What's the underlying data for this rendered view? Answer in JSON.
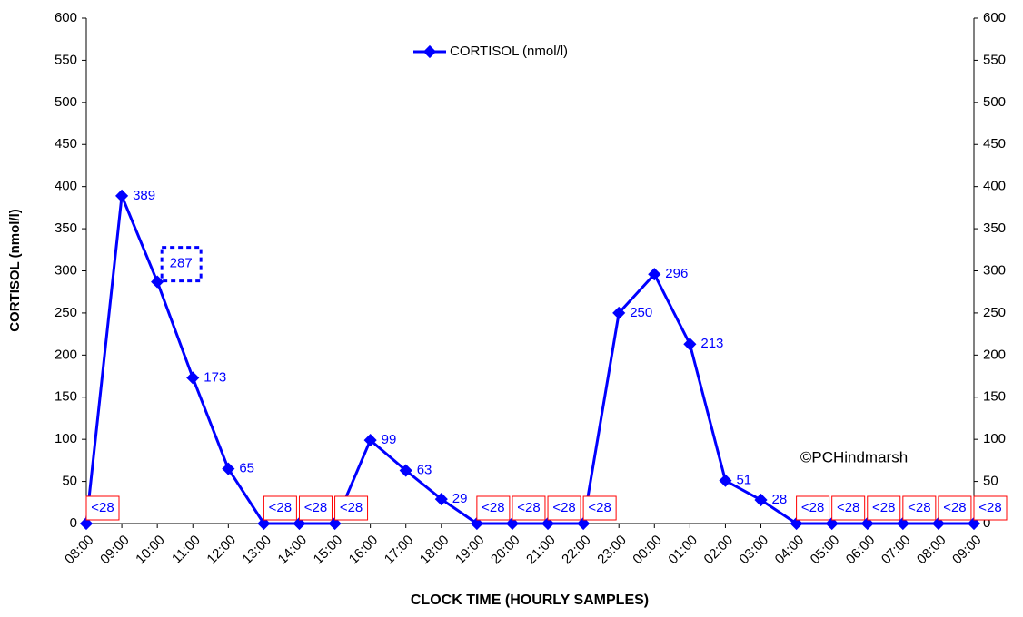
{
  "chart_data": {
    "type": "line",
    "x_label": "CLOCK TIME (HOURLY SAMPLES)",
    "y_label": "CORTISOL (nmol/l)",
    "annotation": "©PCHindmarsh",
    "categories": [
      "08:00",
      "09:00",
      "10:00",
      "11:00",
      "12:00",
      "13:00",
      "14:00",
      "15:00",
      "16:00",
      "17:00",
      "18:00",
      "19:00",
      "20:00",
      "21:00",
      "22:00",
      "23:00",
      "00:00",
      "01:00",
      "02:00",
      "03:00",
      "04:00",
      "05:00",
      "06:00",
      "07:00",
      "08:00",
      "09:00"
    ],
    "series": [
      {
        "name": "CORTISOL (nmol/l)",
        "color": "#0000ff",
        "values": [
          0,
          389,
          287,
          173,
          65,
          0,
          0,
          0,
          99,
          63,
          29,
          0,
          0,
          0,
          0,
          250,
          296,
          213,
          51,
          28,
          0,
          0,
          0,
          0,
          0,
          0
        ],
        "value_labels": [
          "<28",
          "389",
          "287",
          "173",
          "65",
          "<28",
          "<28",
          "<28",
          "99",
          "63",
          "29",
          "<28",
          "<28",
          "<28",
          "<28",
          "250",
          "296",
          "213",
          "51",
          "28",
          "<28",
          "<28",
          "<28",
          "<28",
          "<28",
          "<28"
        ]
      }
    ],
    "ylim": [
      0,
      600
    ],
    "yticks": [
      0,
      50,
      100,
      150,
      200,
      250,
      300,
      350,
      400,
      450,
      500,
      550,
      600
    ],
    "y2lim": [
      0,
      600
    ],
    "y2ticks": [
      0,
      50,
      100,
      150,
      200,
      250,
      300,
      350,
      400,
      450,
      500,
      550,
      600
    ],
    "grid": false,
    "legend": "top"
  }
}
